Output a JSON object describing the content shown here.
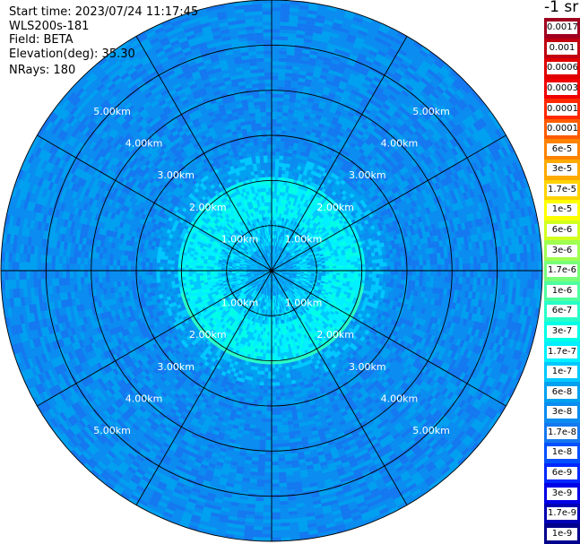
{
  "info": {
    "start_time": "Start time: 2023/07/24 11:17:45",
    "instrument": "WLS200s-181",
    "field": "Field: BETA",
    "elevation": "Elevation(deg): 35.30",
    "nrays": "NRays: 180"
  },
  "colorbar": {
    "unit_label": "-1 sr",
    "levels": [
      {
        "label": "0.0017",
        "color": "#a0001e"
      },
      {
        "label": "0.001",
        "color": "#c00010"
      },
      {
        "label": "0.0006",
        "color": "#e00000"
      },
      {
        "label": "0.0003",
        "color": "#f00000"
      },
      {
        "label": "0.00017",
        "color": "#ff2800"
      },
      {
        "label": "0.0001",
        "color": "#ff5a00"
      },
      {
        "label": "6e-5",
        "color": "#ff8200"
      },
      {
        "label": "3e-5",
        "color": "#ffaa00"
      },
      {
        "label": "1.7e-5",
        "color": "#ffd200"
      },
      {
        "label": "1e-5",
        "color": "#ffff00"
      },
      {
        "label": "6e-6",
        "color": "#d2ff1e"
      },
      {
        "label": "3e-6",
        "color": "#a0ff50"
      },
      {
        "label": "1.7e-6",
        "color": "#78ff78"
      },
      {
        "label": "1e-6",
        "color": "#50ffa0"
      },
      {
        "label": "6e-7",
        "color": "#28ffc8"
      },
      {
        "label": "3e-7",
        "color": "#00ffe6"
      },
      {
        "label": "1.7e-7",
        "color": "#00f0ff"
      },
      {
        "label": "1e-7",
        "color": "#00c8ff"
      },
      {
        "label": "6e-8",
        "color": "#00a0f0"
      },
      {
        "label": "3e-8",
        "color": "#0a8cf0"
      },
      {
        "label": "1.7e-8",
        "color": "#1478f0"
      },
      {
        "label": "1e-8",
        "color": "#0050ff"
      },
      {
        "label": "6e-9",
        "color": "#0028ff"
      },
      {
        "label": "3e-9",
        "color": "#0000e6"
      },
      {
        "label": "1.7e-9",
        "color": "#0000b4"
      },
      {
        "label": "1e-9",
        "color": "#00008c"
      }
    ]
  },
  "chart_data": {
    "type": "heatmap",
    "projection": "polar (PPI scan)",
    "field": "BETA",
    "elevation_deg": 35.3,
    "nrays": 180,
    "range_km_max": 6.0,
    "range_rings_km": [
      1,
      2,
      3,
      4,
      5,
      6
    ],
    "radial_lines_deg": [
      0,
      30,
      60,
      90,
      120,
      150,
      180,
      210,
      240,
      270,
      300,
      330
    ],
    "ring_labels": [
      "1.00km",
      "2.00km",
      "3.00km",
      "4.00km",
      "5.00km"
    ],
    "label_azimuths_deg": [
      45,
      135,
      225,
      315
    ],
    "value_range": [
      1e-09,
      0.0017
    ],
    "ring_profile": [
      {
        "range_km": [
          0.0,
          0.6
        ],
        "level": "6e-8"
      },
      {
        "range_km": [
          0.6,
          1.2
        ],
        "level": "1e-7"
      },
      {
        "range_km": [
          1.2,
          2.1
        ],
        "level": "1.7e-7"
      },
      {
        "range_km": [
          2.1,
          2.6
        ],
        "level": "6e-8"
      },
      {
        "range_km": [
          2.6,
          6.0
        ],
        "level": "3e-8"
      }
    ],
    "feature": {
      "description": "enhanced arc",
      "range_km": 2.05,
      "azimuth_deg": [
        100,
        255
      ],
      "level": "3e-6"
    },
    "grid": true
  }
}
